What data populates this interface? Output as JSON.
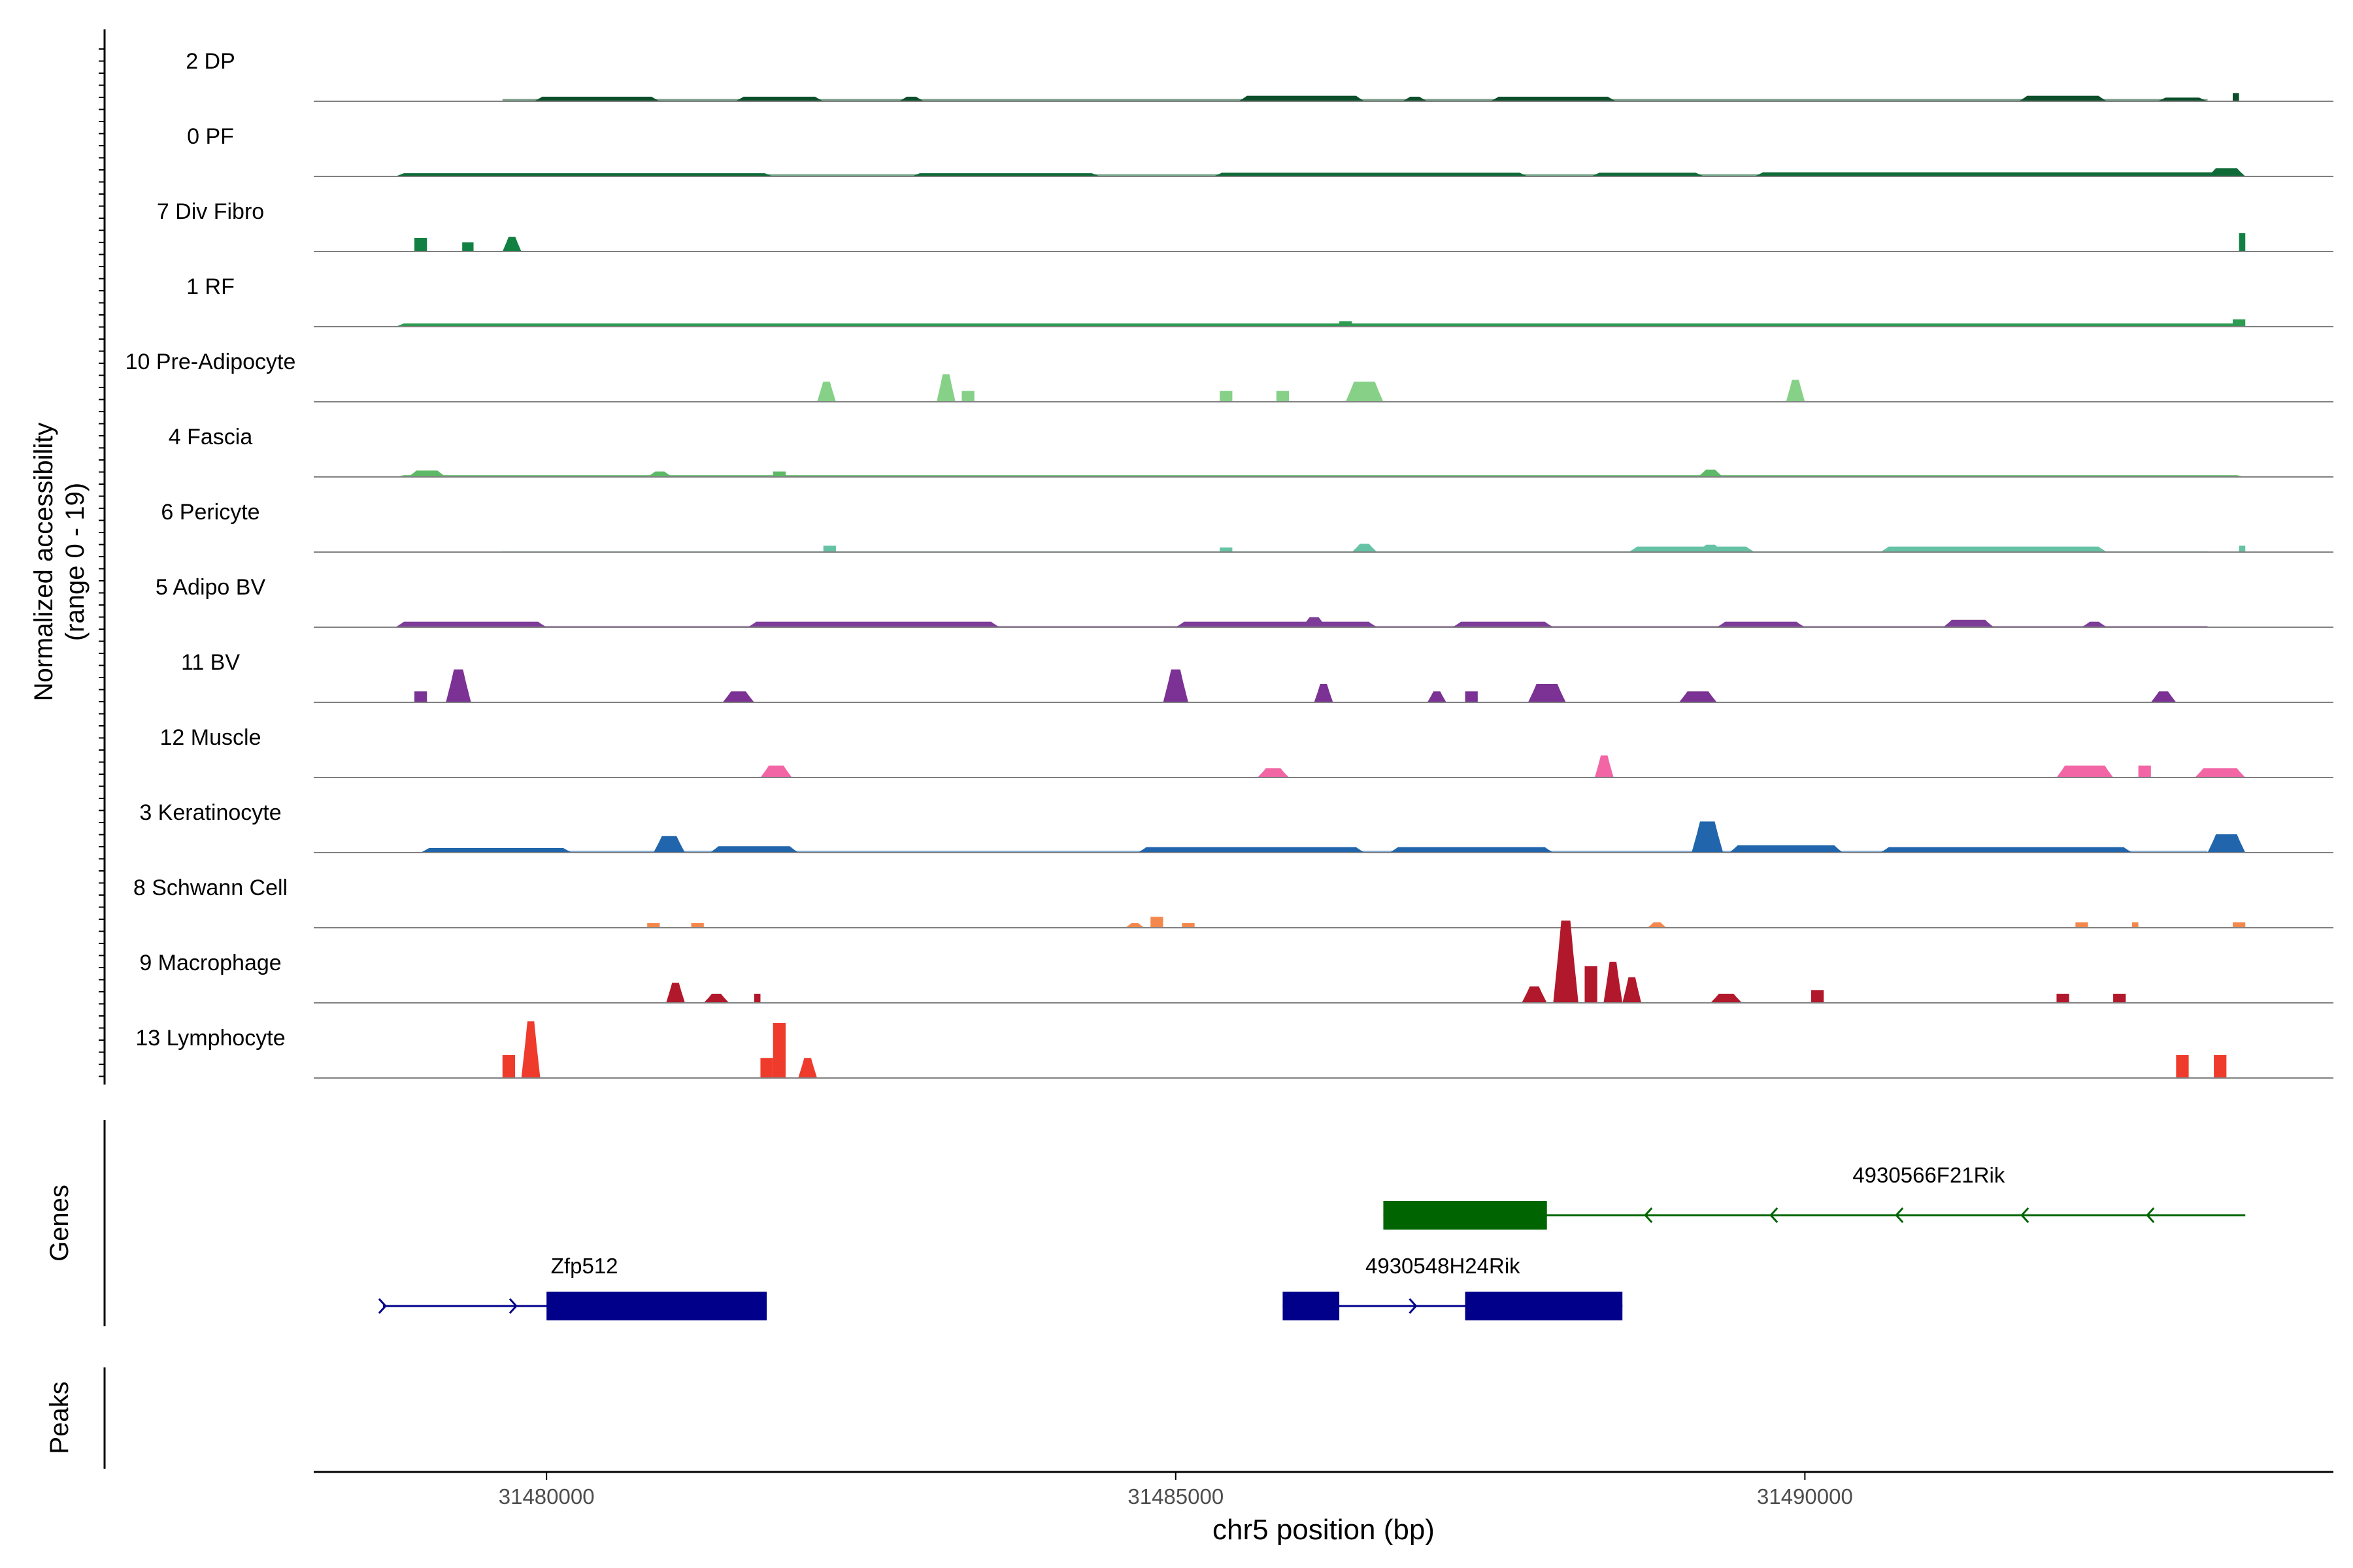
{
  "chart_data": {
    "type": "area",
    "subtype": "genome-coverage-plot",
    "region": {
      "chromosome": "chr5",
      "start": 31478150,
      "end": 31494200
    },
    "xlabel": "chr5 position (bp)",
    "x_ticks": [
      31480000,
      31485000,
      31490000
    ],
    "x_tick_labels": [
      "31480000",
      "31485000",
      "31490000"
    ],
    "ylabel_line1": "Normalized accessibility",
    "ylabel_line2": "(range 0 - 19)",
    "y_range": [
      0,
      19
    ],
    "genes_label": "Genes",
    "peaks_label": "Peaks",
    "tracks": [
      {
        "name": "2 DP",
        "color": "#0B4F2A",
        "peaks": [
          [
            31479900,
            31480900,
            0.5
          ],
          [
            31481500,
            31482200,
            0.5
          ],
          [
            31482800,
            31483000,
            0.5
          ],
          [
            31485500,
            31486500,
            0.6
          ],
          [
            31486800,
            31487000,
            0.5
          ],
          [
            31487500,
            31488500,
            0.5
          ],
          [
            31491700,
            31492400,
            0.6
          ],
          [
            31492800,
            31493200,
            0.4
          ],
          [
            31493400,
            31493450,
            0.9
          ]
        ],
        "baseline": 0.25
      },
      {
        "name": "0 PF",
        "color": "#0F6A37",
        "peaks": [
          [
            31478800,
            31481800,
            0.35
          ],
          [
            31482900,
            31484400,
            0.35
          ],
          [
            31485300,
            31487800,
            0.4
          ],
          [
            31488300,
            31489200,
            0.4
          ],
          [
            31489600,
            31493500,
            0.45
          ],
          [
            31493200,
            31493500,
            0.9
          ]
        ],
        "baseline": 0.25
      },
      {
        "name": "7 Div Fibro",
        "color": "#138043",
        "peaks": [
          [
            31478950,
            31479050,
            1.5
          ],
          [
            31479330,
            31479420,
            1.0
          ],
          [
            31479650,
            31479800,
            1.6
          ],
          [
            31493450,
            31493500,
            2.0
          ]
        ],
        "baseline": 0
      },
      {
        "name": "1 RF",
        "color": "#2E9B52",
        "peaks": [
          [
            31478800,
            31493500,
            0.35
          ],
          [
            31486300,
            31486400,
            0.6
          ],
          [
            31493400,
            31493500,
            0.8
          ]
        ],
        "baseline": 0.2
      },
      {
        "name": "10 Pre-Adipocyte",
        "color": "#86D088",
        "peaks": [
          [
            31482150,
            31482300,
            2.2
          ],
          [
            31483100,
            31483250,
            3.0
          ],
          [
            31483300,
            31483400,
            1.2
          ],
          [
            31485350,
            31485450,
            1.2
          ],
          [
            31485800,
            31485900,
            1.2
          ],
          [
            31486350,
            31486650,
            2.2
          ],
          [
            31489850,
            31490000,
            2.4
          ]
        ],
        "baseline": 0
      },
      {
        "name": "4 Fascia",
        "color": "#5DB967",
        "peaks": [
          [
            31478900,
            31479200,
            0.7
          ],
          [
            31480800,
            31481000,
            0.6
          ],
          [
            31481800,
            31481900,
            0.6
          ],
          [
            31489150,
            31489350,
            0.8
          ],
          [
            31478800,
            31493500,
            0.2
          ]
        ],
        "baseline": 0.15
      },
      {
        "name": "6 Pericyte",
        "color": "#66C2A5",
        "peaks": [
          [
            31482200,
            31482300,
            0.7
          ],
          [
            31485350,
            31485450,
            0.5
          ],
          [
            31486400,
            31486600,
            0.9
          ],
          [
            31488600,
            31489600,
            0.6
          ],
          [
            31490600,
            31492400,
            0.6
          ],
          [
            31489150,
            31489350,
            0.8
          ],
          [
            31493450,
            31493500,
            0.7
          ]
        ],
        "baseline": 0.1
      },
      {
        "name": "5 Adipo BV",
        "color": "#7D3C98",
        "peaks": [
          [
            31478800,
            31480000,
            0.6
          ],
          [
            31481600,
            31483600,
            0.6
          ],
          [
            31485000,
            31486600,
            0.6
          ],
          [
            31486000,
            31486200,
            1.1
          ],
          [
            31487200,
            31488000,
            0.6
          ],
          [
            31489300,
            31490000,
            0.6
          ],
          [
            31491100,
            31491500,
            0.8
          ],
          [
            31492200,
            31492400,
            0.6
          ]
        ],
        "baseline": 0.15
      },
      {
        "name": "11 BV",
        "color": "#7B3294",
        "peaks": [
          [
            31478950,
            31479050,
            1.2
          ],
          [
            31479200,
            31479400,
            3.6
          ],
          [
            31481400,
            31481650,
            1.2
          ],
          [
            31484900,
            31485100,
            3.6
          ],
          [
            31486100,
            31486250,
            2.0
          ],
          [
            31487000,
            31487150,
            1.2
          ],
          [
            31487300,
            31487400,
            1.2
          ],
          [
            31487800,
            31488100,
            2.0
          ],
          [
            31489000,
            31489300,
            1.2
          ],
          [
            31492750,
            31492950,
            1.2
          ]
        ],
        "baseline": 0
      },
      {
        "name": "12 Muscle",
        "color": "#F266A6",
        "peaks": [
          [
            31481700,
            31481950,
            1.3
          ],
          [
            31485650,
            31485900,
            1.0
          ],
          [
            31488330,
            31488480,
            2.4
          ],
          [
            31492000,
            31492450,
            1.3
          ],
          [
            31492650,
            31492750,
            1.3
          ],
          [
            31493100,
            31493500,
            1.0
          ]
        ],
        "baseline": 0
      },
      {
        "name": "3 Keratinocyte",
        "color": "#2166AC",
        "peaks": [
          [
            31479000,
            31480200,
            0.5
          ],
          [
            31480850,
            31481100,
            1.8
          ],
          [
            31481300,
            31482000,
            0.7
          ],
          [
            31484700,
            31486500,
            0.6
          ],
          [
            31486700,
            31488000,
            0.6
          ],
          [
            31489100,
            31489350,
            3.4
          ],
          [
            31489400,
            31490300,
            0.8
          ],
          [
            31490600,
            31492600,
            0.6
          ],
          [
            31493200,
            31493500,
            2.0
          ]
        ],
        "baseline": 0.2
      },
      {
        "name": "8 Schwann Cell",
        "color": "#F4874B",
        "peaks": [
          [
            31480800,
            31480900,
            0.5
          ],
          [
            31481150,
            31481250,
            0.5
          ],
          [
            31484600,
            31484750,
            0.5
          ],
          [
            31484800,
            31484900,
            1.2
          ],
          [
            31485050,
            31485150,
            0.5
          ],
          [
            31488750,
            31488900,
            0.6
          ],
          [
            31492150,
            31492250,
            0.6
          ],
          [
            31492600,
            31492650,
            0.6
          ],
          [
            31493400,
            31493500,
            0.6
          ]
        ],
        "baseline": 0
      },
      {
        "name": "9 Macrophage",
        "color": "#B2182B",
        "peaks": [
          [
            31480950,
            31481100,
            2.2
          ],
          [
            31481250,
            31481450,
            1.0
          ],
          [
            31481650,
            31481700,
            1.0
          ],
          [
            31487750,
            31487950,
            1.8
          ],
          [
            31488000,
            31488200,
            9.0
          ],
          [
            31488250,
            31488350,
            4.0
          ],
          [
            31488400,
            31488550,
            4.5
          ],
          [
            31488550,
            31488700,
            2.8
          ],
          [
            31489250,
            31489500,
            1.0
          ],
          [
            31490050,
            31490150,
            1.4
          ],
          [
            31492000,
            31492100,
            1.0
          ],
          [
            31492450,
            31492550,
            1.0
          ]
        ],
        "baseline": 0
      },
      {
        "name": "13 Lymphocyte",
        "color": "#EE3B2C",
        "peaks": [
          [
            31479650,
            31479750,
            2.5
          ],
          [
            31479800,
            31479950,
            6.2
          ],
          [
            31481700,
            31481800,
            2.2
          ],
          [
            31481800,
            31481900,
            6.0
          ],
          [
            31482000,
            31482150,
            2.2
          ],
          [
            31492950,
            31493050,
            2.5
          ],
          [
            31493250,
            31493350,
            2.5
          ]
        ],
        "baseline": 0
      }
    ],
    "genes": [
      {
        "name": "Zfp512",
        "strand": "+",
        "color": "#00008B",
        "row": 2,
        "line": [
          31478700,
          31481750
        ],
        "exons": [
          [
            31480000,
            31481750
          ]
        ]
      },
      {
        "name": "4930548H24Rik",
        "strand": "+",
        "color": "#00008B",
        "row": 2,
        "line": [
          31485850,
          31488550
        ],
        "exons": [
          [
            31485850,
            31486300
          ],
          [
            31487300,
            31488550
          ]
        ]
      },
      {
        "name": "4930566F21Rik",
        "strand": "-",
        "color": "#006400",
        "row": 1,
        "line": [
          31486650,
          31493500
        ],
        "exons": [
          [
            31486650,
            31487950
          ]
        ]
      }
    ]
  }
}
